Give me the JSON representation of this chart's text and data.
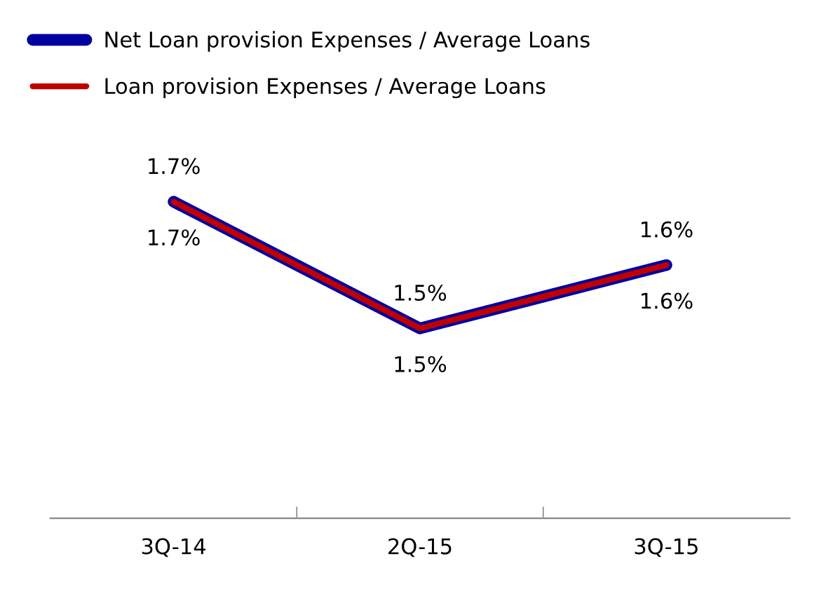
{
  "chart_data": {
    "type": "line",
    "categories": [
      "3Q-14",
      "2Q-15",
      "3Q-15"
    ],
    "series": [
      {
        "name": "Net Loan provision Expenses / Average Loans",
        "color": "#0000a0",
        "values": [
          1.7,
          1.5,
          1.6
        ],
        "value_labels": [
          "1.7%",
          "1.5%",
          "1.6%"
        ]
      },
      {
        "name": "Loan provision Expenses / Average Loans",
        "color": "#c00000",
        "values": [
          1.7,
          1.5,
          1.6
        ],
        "value_labels": [
          "1.7%",
          "1.5%",
          "1.6%"
        ]
      }
    ],
    "legend": "top left",
    "marker": "none",
    "line_style": "solid"
  }
}
